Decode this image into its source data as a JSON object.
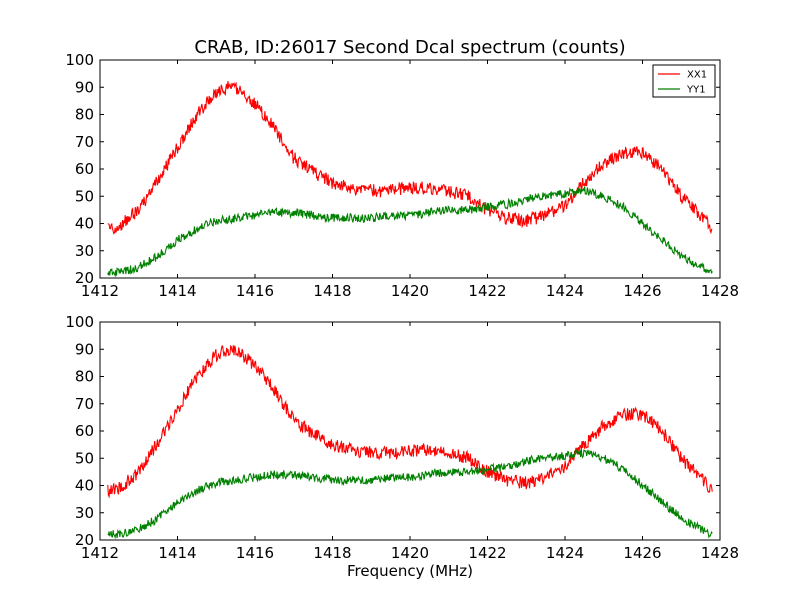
{
  "figure": {
    "title": "CRAB, ID:26017 Second Dcal spectrum (counts)",
    "xlabel": "Frequency (MHz)"
  },
  "colors": {
    "XX1": "#ff0000",
    "YY1": "#008000",
    "axes": "#000000",
    "background": "#ffffff"
  },
  "chart_data": [
    {
      "type": "line",
      "title": "CRAB, ID:26017 Second Dcal spectrum (counts)",
      "xlabel": "",
      "ylabel": "",
      "xlim": [
        1412,
        1428
      ],
      "ylim": [
        20,
        100
      ],
      "xticks": [
        1412,
        1414,
        1416,
        1418,
        1420,
        1422,
        1424,
        1426,
        1428
      ],
      "yticks": [
        20,
        30,
        40,
        50,
        60,
        70,
        80,
        90,
        100
      ],
      "grid": false,
      "legend": {
        "placement": "top-right",
        "entries": [
          "XX1",
          "YY1"
        ]
      },
      "series": [
        {
          "name": "XX1",
          "color": "#ff0000",
          "x": [
            1412.2,
            1412.5,
            1413.0,
            1413.5,
            1414.0,
            1414.5,
            1415.0,
            1415.3,
            1415.6,
            1416.0,
            1416.5,
            1417.0,
            1417.5,
            1418.0,
            1418.5,
            1419.0,
            1419.5,
            1420.0,
            1420.5,
            1421.0,
            1421.5,
            1422.0,
            1422.5,
            1423.0,
            1423.5,
            1424.0,
            1424.5,
            1425.0,
            1425.5,
            1426.0,
            1426.5,
            1427.0,
            1427.5,
            1427.8
          ],
          "values": [
            38,
            39,
            45,
            56,
            68,
            80,
            88,
            90,
            89,
            84,
            75,
            64,
            59,
            55,
            53,
            52,
            52,
            53,
            53,
            52,
            50,
            45,
            42,
            41,
            43,
            47,
            55,
            62,
            66,
            66,
            60,
            50,
            43,
            38
          ]
        },
        {
          "name": "YY1",
          "color": "#008000",
          "x": [
            1412.2,
            1412.5,
            1413.0,
            1413.5,
            1414.0,
            1414.5,
            1415.0,
            1415.5,
            1416.0,
            1416.5,
            1417.0,
            1417.5,
            1418.0,
            1418.5,
            1419.0,
            1419.5,
            1420.0,
            1420.5,
            1421.0,
            1421.5,
            1422.0,
            1422.5,
            1423.0,
            1423.5,
            1424.0,
            1424.5,
            1425.0,
            1425.5,
            1426.0,
            1426.5,
            1427.0,
            1427.5,
            1427.8
          ],
          "values": [
            22,
            22,
            24,
            28,
            34,
            38,
            41,
            42,
            43,
            44,
            44,
            43,
            42,
            42,
            42,
            43,
            43,
            44,
            45,
            45,
            46,
            47,
            49,
            50,
            51,
            52,
            50,
            46,
            40,
            34,
            28,
            24,
            22
          ]
        }
      ]
    },
    {
      "type": "line",
      "title": "",
      "xlabel": "Frequency (MHz)",
      "ylabel": "",
      "xlim": [
        1412,
        1428
      ],
      "ylim": [
        20,
        100
      ],
      "xticks": [
        1412,
        1414,
        1416,
        1418,
        1420,
        1422,
        1424,
        1426,
        1428
      ],
      "yticks": [
        20,
        30,
        40,
        50,
        60,
        70,
        80,
        90,
        100
      ],
      "grid": false,
      "legend": null,
      "series": [
        {
          "color": "#ff0000",
          "x": [
            1412.2,
            1412.5,
            1413.0,
            1413.5,
            1414.0,
            1414.5,
            1415.0,
            1415.3,
            1415.6,
            1416.0,
            1416.5,
            1417.0,
            1417.5,
            1418.0,
            1418.5,
            1419.0,
            1419.5,
            1420.0,
            1420.5,
            1421.0,
            1421.5,
            1422.0,
            1422.5,
            1423.0,
            1423.5,
            1424.0,
            1424.5,
            1425.0,
            1425.5,
            1426.0,
            1426.5,
            1427.0,
            1427.5,
            1427.8
          ],
          "values": [
            38,
            39,
            45,
            56,
            68,
            80,
            88,
            90,
            89,
            84,
            75,
            64,
            59,
            55,
            53,
            52,
            52,
            53,
            53,
            52,
            50,
            45,
            42,
            41,
            43,
            47,
            55,
            62,
            66,
            66,
            60,
            50,
            43,
            38
          ]
        },
        {
          "color": "#008000",
          "x": [
            1412.2,
            1412.5,
            1413.0,
            1413.5,
            1414.0,
            1414.5,
            1415.0,
            1415.5,
            1416.0,
            1416.5,
            1417.0,
            1417.5,
            1418.0,
            1418.5,
            1419.0,
            1419.5,
            1420.0,
            1420.5,
            1421.0,
            1421.5,
            1422.0,
            1422.5,
            1423.0,
            1423.5,
            1424.0,
            1424.5,
            1425.0,
            1425.5,
            1426.0,
            1426.5,
            1427.0,
            1427.5,
            1427.8
          ],
          "values": [
            22,
            22,
            24,
            28,
            34,
            38,
            41,
            42,
            43,
            44,
            44,
            43,
            42,
            42,
            42,
            43,
            43,
            44,
            45,
            45,
            46,
            47,
            49,
            50,
            51,
            52,
            50,
            46,
            40,
            34,
            28,
            24,
            22
          ]
        }
      ]
    }
  ]
}
